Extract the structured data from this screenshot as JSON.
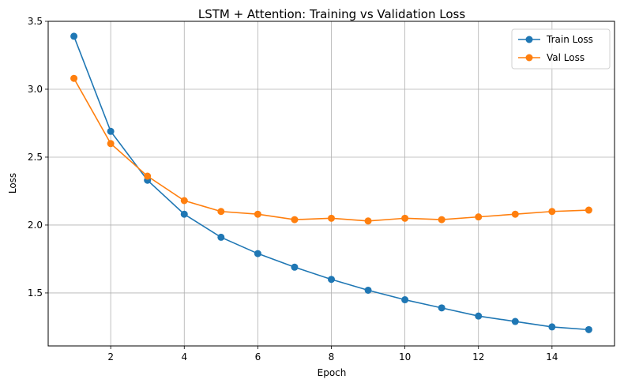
{
  "chart_data": {
    "type": "line",
    "title": "LSTM + Attention: Training vs Validation Loss",
    "xlabel": "Epoch",
    "ylabel": "Loss",
    "x": [
      1,
      2,
      3,
      4,
      5,
      6,
      7,
      8,
      9,
      10,
      11,
      12,
      13,
      14,
      15
    ],
    "xlim": [
      0.3,
      15.7
    ],
    "ylim": [
      1.11,
      3.5
    ],
    "xticks": [
      2,
      4,
      6,
      8,
      10,
      12,
      14
    ],
    "yticks": [
      1.5,
      2.0,
      2.5,
      3.0,
      3.5
    ],
    "ytick_labels": [
      "1.5",
      "2.0",
      "2.5",
      "3.0",
      "3.5"
    ],
    "grid": true,
    "legend_position": "top-right",
    "series": [
      {
        "name": "Train Loss",
        "color": "#1f77b4",
        "marker": "circle",
        "values": [
          3.39,
          2.69,
          2.33,
          2.08,
          1.91,
          1.79,
          1.69,
          1.6,
          1.52,
          1.45,
          1.39,
          1.33,
          1.29,
          1.25,
          1.23
        ]
      },
      {
        "name": "Val Loss",
        "color": "#ff7f0e",
        "marker": "circle",
        "values": [
          3.08,
          2.6,
          2.36,
          2.18,
          2.1,
          2.08,
          2.04,
          2.05,
          2.03,
          2.05,
          2.04,
          2.06,
          2.08,
          2.1,
          2.11
        ]
      }
    ]
  }
}
